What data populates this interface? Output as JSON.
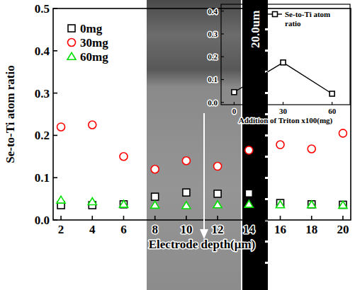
{
  "chart_data": [
    {
      "type": "scatter",
      "x_label": "Electrode depth(μm)",
      "y_label": "Se-to-Ti atom ratio",
      "x": [
        2,
        4,
        6,
        8,
        10,
        12,
        14,
        16,
        18,
        20
      ],
      "series": [
        {
          "name": "0mg",
          "color": "#000000",
          "marker": "square",
          "values": [
            0.035,
            0.035,
            0.037,
            0.055,
            0.065,
            0.062,
            0.063,
            0.04,
            0.037,
            0.036
          ]
        },
        {
          "name": "30mg",
          "color": "#ff0000",
          "marker": "circle",
          "values": [
            0.22,
            0.225,
            0.15,
            0.12,
            0.14,
            0.127,
            0.165,
            0.178,
            0.168,
            0.205
          ]
        },
        {
          "name": "60mg",
          "color": "#00e000",
          "marker": "triangle",
          "values": [
            0.047,
            0.043,
            0.037,
            0.035,
            0.034,
            0.036,
            0.037,
            0.036,
            0.036,
            0.035
          ]
        }
      ],
      "xlim": [
        1.5,
        20.5
      ],
      "ylim": [
        0,
        0.5
      ],
      "xticks": [
        2,
        4,
        6,
        8,
        10,
        12,
        14,
        16,
        18,
        20
      ],
      "yticks": [
        {
          "value": 0,
          "label": "0.0"
        },
        0.1,
        0.2,
        0.3,
        0.4,
        0.5
      ],
      "legend": "upper left",
      "annotations": [
        "20.0um"
      ]
    },
    {
      "type": "line",
      "x_label": "Addition of Triton x100(mg)",
      "x": [
        0,
        30,
        60
      ],
      "series": [
        {
          "name": "Se-to-Ti atom ratio",
          "color": "#000000",
          "marker": "square",
          "line_style": "solid",
          "values": [
            0.045,
            0.175,
            0.038
          ]
        }
      ],
      "xlim": [
        -8,
        71
      ],
      "ylim": [
        -0.01,
        0.43
      ],
      "xticks": [
        0,
        30,
        60
      ],
      "yticks": [
        {
          "value": 0,
          "label": "0.0"
        },
        0.1,
        0.2,
        0.3,
        0.4
      ],
      "legend": "upper right"
    }
  ]
}
